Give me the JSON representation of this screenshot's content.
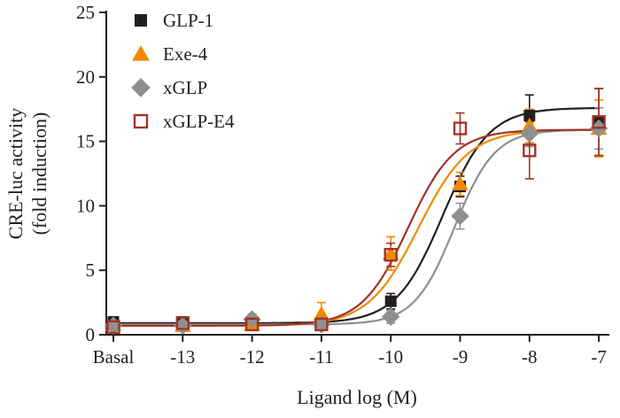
{
  "figure": {
    "ylabel_line1": "CRE-luc activity",
    "ylabel_line2": "(fold induction)",
    "xlabel": "Ligand log (M)"
  },
  "chart_data": {
    "type": "scatter",
    "title": "",
    "xlabel": "Ligand log (M)",
    "ylabel": "CRE-luc activity (fold induction)",
    "categories": [
      "Basal",
      "-13",
      "-12",
      "-11",
      "-10",
      "-9",
      "-8",
      "-7"
    ],
    "ylim": [
      0,
      25
    ],
    "yticks": [
      0,
      5,
      10,
      15,
      20,
      25
    ],
    "grid": false,
    "legend_position": "top-left-inside",
    "axis_color": "#231f20",
    "series": [
      {
        "name": "GLP-1",
        "color": "#231f20",
        "marker": "square-filled",
        "values": [
          1.0,
          1.0,
          1.0,
          1.0,
          2.6,
          11.5,
          17.0,
          16.5
        ],
        "errors": [
          0.3,
          0.3,
          0.2,
          0.4,
          0.6,
          0.8,
          1.6,
          2.6
        ],
        "fit": {
          "bottom": 0.9,
          "top": 17.6,
          "ec50_index": 4.75,
          "hill": 1.3
        }
      },
      {
        "name": "Exe-4",
        "color": "#f18a00",
        "marker": "triangle-filled",
        "values": [
          0.8,
          0.7,
          0.8,
          1.6,
          6.3,
          11.7,
          16.2,
          16.0
        ],
        "errors": [
          0.2,
          0.2,
          0.3,
          0.9,
          1.3,
          0.9,
          1.3,
          2.2
        ],
        "fit": {
          "bottom": 0.7,
          "top": 15.9,
          "ec50_index": 4.4,
          "hill": 1.2
        }
      },
      {
        "name": "xGLP",
        "color": "#8f8f8f",
        "marker": "diamond-filled",
        "values": [
          0.7,
          0.7,
          1.2,
          0.8,
          1.4,
          9.2,
          15.6,
          16.0
        ],
        "errors": [
          0.2,
          0.2,
          0.4,
          0.3,
          0.5,
          1.0,
          1.0,
          1.6
        ],
        "fit": {
          "bottom": 0.8,
          "top": 15.9,
          "ec50_index": 4.92,
          "hill": 1.5
        }
      },
      {
        "name": "xGLP-E4",
        "color": "#a23327",
        "marker": "square-open",
        "values": [
          0.6,
          0.9,
          0.8,
          0.8,
          6.2,
          16.0,
          14.3,
          16.5
        ],
        "errors": [
          0.2,
          0.3,
          0.3,
          0.4,
          0.9,
          1.2,
          2.2,
          2.6
        ],
        "fit": {
          "bottom": 0.7,
          "top": 15.9,
          "ec50_index": 4.25,
          "hill": 1.3
        }
      }
    ]
  }
}
